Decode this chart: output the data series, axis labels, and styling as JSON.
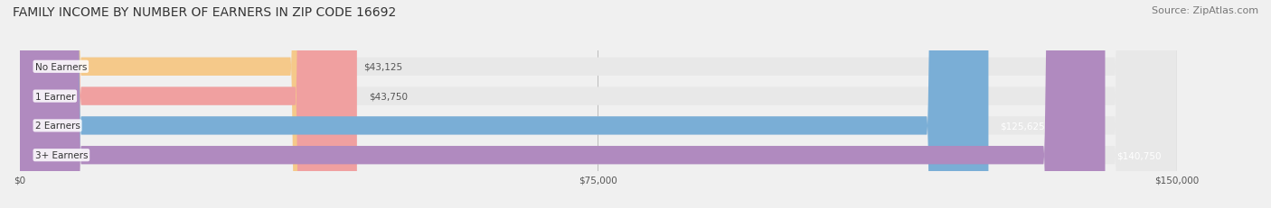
{
  "title": "FAMILY INCOME BY NUMBER OF EARNERS IN ZIP CODE 16692",
  "source": "Source: ZipAtlas.com",
  "categories": [
    "No Earners",
    "1 Earner",
    "2 Earners",
    "3+ Earners"
  ],
  "values": [
    43125,
    43750,
    125625,
    140750
  ],
  "bar_colors": [
    "#f5c98a",
    "#f0a0a0",
    "#7aaed6",
    "#b08abf"
  ],
  "label_colors": [
    "#555555",
    "#555555",
    "#ffffff",
    "#ffffff"
  ],
  "value_labels": [
    "$43,125",
    "$43,750",
    "$125,625",
    "$140,750"
  ],
  "xlim": [
    0,
    150000
  ],
  "xticks": [
    0,
    75000,
    150000
  ],
  "xtick_labels": [
    "$0",
    "$75,000",
    "$150,000"
  ],
  "background_color": "#f0f0f0",
  "bar_background_color": "#e8e8e8",
  "title_fontsize": 10,
  "source_fontsize": 8
}
